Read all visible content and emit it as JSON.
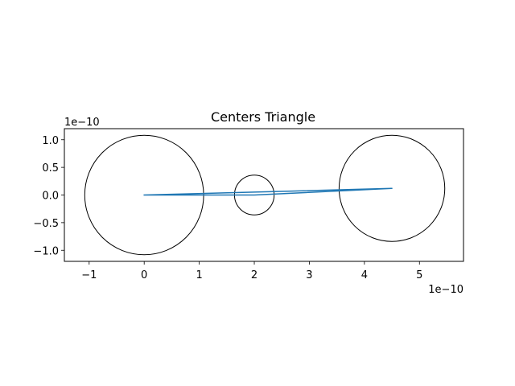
{
  "chart_data": {
    "type": "line",
    "title": "Centers Triangle",
    "xlabel": "",
    "ylabel": "",
    "x_offset_text": "1e−10",
    "y_offset_text": "1e−10",
    "xlim": [
      -1.45,
      5.8
    ],
    "ylim": [
      -1.2,
      1.2
    ],
    "aspect": "equal",
    "grid": false,
    "x_ticks": [
      -1,
      0,
      1,
      2,
      3,
      4,
      5
    ],
    "x_tick_labels": [
      "−1",
      "0",
      "1",
      "2",
      "3",
      "4",
      "5"
    ],
    "y_ticks": [
      1.0,
      0.5,
      0.0,
      -0.5,
      -1.0
    ],
    "y_tick_labels": [
      "1.0",
      "0.5",
      "0.0",
      "−0.5",
      "−1.0"
    ],
    "series": [
      {
        "color": "#1f77b4",
        "x": [
          0.0,
          2.0,
          4.5,
          0.0
        ],
        "y": [
          0.0,
          0.0,
          0.12,
          0.0
        ]
      }
    ],
    "circles": [
      {
        "cx": 0.0,
        "cy": 0.0,
        "r": 1.08,
        "color": "#000000"
      },
      {
        "cx": 2.0,
        "cy": 0.0,
        "r": 0.36,
        "color": "#000000"
      },
      {
        "cx": 4.5,
        "cy": 0.12,
        "r": 0.96,
        "color": "#000000"
      }
    ]
  }
}
